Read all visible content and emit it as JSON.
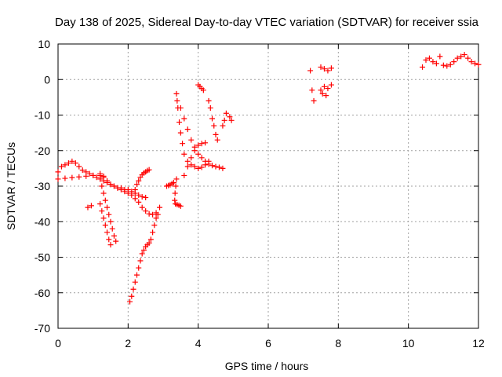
{
  "chart_data": {
    "type": "scatter",
    "title": "Day 138 of 2025, Sidereal Day-to-day VTEC variation (SDTVAR) for receiver ssia",
    "xlabel": "GPS time / hours",
    "ylabel": "SDTVAR / TECUs",
    "xlim": [
      0,
      12
    ],
    "ylim": [
      -70,
      10
    ],
    "xticks": [
      0,
      2,
      4,
      6,
      8,
      10,
      12
    ],
    "yticks": [
      10,
      0,
      -10,
      -20,
      -30,
      -40,
      -50,
      -60,
      -70
    ],
    "grid": true,
    "legend": "none",
    "marker": "+",
    "color": "#ff0000",
    "series": [
      {
        "values": [
          [
            0,
            -26
          ],
          [
            0.1,
            -24.5
          ],
          [
            0.2,
            -24
          ],
          [
            0.3,
            -23.5
          ],
          [
            0.4,
            -23
          ],
          [
            0.5,
            -23.5
          ],
          [
            0.6,
            -24.5
          ],
          [
            0.7,
            -25.5
          ],
          [
            0.8,
            -26
          ],
          [
            0.9,
            -26.5
          ],
          [
            1.0,
            -27
          ],
          [
            1.1,
            -27.5
          ],
          [
            1.2,
            -28
          ],
          [
            1.3,
            -28.5
          ],
          [
            1.4,
            -29
          ],
          [
            1.5,
            -29.5
          ],
          [
            1.6,
            -30
          ],
          [
            1.7,
            -30.5
          ],
          [
            1.8,
            -30.5
          ],
          [
            1.9,
            -31
          ],
          [
            2.0,
            -31
          ],
          [
            2.1,
            -31.5
          ],
          [
            2.2,
            -32
          ],
          [
            2.3,
            -32.5
          ],
          [
            2.4,
            -33
          ],
          [
            2.5,
            -33.2
          ]
        ]
      },
      {
        "values": [
          [
            0,
            -28
          ],
          [
            0.2,
            -27.8
          ],
          [
            0.4,
            -27.6
          ],
          [
            0.6,
            -27.4
          ],
          [
            0.8,
            -27.2
          ],
          [
            1.0,
            -27
          ],
          [
            1.2,
            -27
          ],
          [
            1.3,
            -27.2
          ]
        ]
      },
      {
        "values": [
          [
            1.2,
            -26.5
          ],
          [
            1.3,
            -27.5
          ],
          [
            1.4,
            -28.5
          ],
          [
            1.5,
            -29.5
          ],
          [
            1.6,
            -30
          ],
          [
            1.7,
            -30.5
          ],
          [
            1.8,
            -31
          ],
          [
            1.9,
            -31.5
          ],
          [
            2.0,
            -32
          ],
          [
            2.1,
            -32.5
          ],
          [
            2.2,
            -33.5
          ],
          [
            2.3,
            -34.5
          ],
          [
            2.4,
            -36
          ],
          [
            2.5,
            -37
          ],
          [
            2.6,
            -37.8
          ],
          [
            2.7,
            -38
          ],
          [
            2.8,
            -37.5
          ],
          [
            2.9,
            -36
          ]
        ]
      },
      {
        "values": [
          [
            1.2,
            -28
          ],
          [
            1.25,
            -30
          ],
          [
            1.3,
            -32
          ],
          [
            1.35,
            -34
          ],
          [
            1.4,
            -36
          ],
          [
            1.45,
            -38
          ],
          [
            1.5,
            -40
          ],
          [
            1.55,
            -42
          ],
          [
            1.6,
            -44
          ],
          [
            1.65,
            -45.5
          ]
        ]
      },
      {
        "values": [
          [
            1.2,
            -35
          ],
          [
            1.25,
            -37
          ],
          [
            1.3,
            -39
          ],
          [
            1.35,
            -41
          ],
          [
            1.4,
            -43
          ],
          [
            1.45,
            -45
          ],
          [
            1.5,
            -46.5
          ]
        ]
      },
      {
        "values": [
          [
            0.85,
            -36
          ],
          [
            0.95,
            -35.5
          ]
        ]
      },
      {
        "values": [
          [
            2.05,
            -62.5
          ],
          [
            2.1,
            -61
          ],
          [
            2.15,
            -59
          ],
          [
            2.2,
            -57
          ],
          [
            2.25,
            -55
          ],
          [
            2.3,
            -53
          ],
          [
            2.35,
            -51
          ],
          [
            2.4,
            -49
          ],
          [
            2.45,
            -48
          ],
          [
            2.5,
            -47
          ],
          [
            2.55,
            -46.5
          ],
          [
            2.6,
            -46
          ],
          [
            2.65,
            -45
          ],
          [
            2.7,
            -43
          ],
          [
            2.75,
            -41
          ],
          [
            2.8,
            -39
          ],
          [
            2.85,
            -38
          ]
        ]
      },
      {
        "values": [
          [
            2.2,
            -31
          ],
          [
            2.25,
            -29.5
          ],
          [
            2.3,
            -28.5
          ],
          [
            2.35,
            -27.5
          ],
          [
            2.4,
            -26.8
          ],
          [
            2.45,
            -26.3
          ],
          [
            2.5,
            -26
          ],
          [
            2.55,
            -25.6
          ],
          [
            2.6,
            -25.4
          ]
        ]
      },
      {
        "values": [
          [
            3.1,
            -30
          ],
          [
            3.15,
            -29.8
          ],
          [
            3.2,
            -29.6
          ],
          [
            3.25,
            -29.3
          ],
          [
            3.3,
            -29
          ]
        ]
      },
      {
        "values": [
          [
            3.35,
            -35
          ],
          [
            3.4,
            -35.2
          ],
          [
            3.45,
            -35.4
          ],
          [
            3.5,
            -35.6
          ]
        ]
      },
      {
        "values": [
          [
            3.38,
            -4
          ],
          [
            3.42,
            -8
          ],
          [
            3.46,
            -12
          ],
          [
            3.5,
            -15
          ],
          [
            3.55,
            -18
          ],
          [
            3.6,
            -21
          ],
          [
            3.7,
            -23
          ],
          [
            3.8,
            -24
          ],
          [
            3.9,
            -24.5
          ],
          [
            4.0,
            -25
          ],
          [
            4.1,
            -24.7
          ],
          [
            4.2,
            -24
          ],
          [
            4.3,
            -23
          ]
        ]
      },
      {
        "values": [
          [
            3.38,
            -28
          ],
          [
            3.36,
            -30
          ],
          [
            3.34,
            -32
          ],
          [
            3.33,
            -34
          ]
        ]
      },
      {
        "values": [
          [
            3.4,
            -6
          ],
          [
            3.5,
            -8
          ],
          [
            3.6,
            -11
          ],
          [
            3.7,
            -14
          ],
          [
            3.8,
            -17
          ],
          [
            3.9,
            -19
          ],
          [
            4.0,
            -21
          ],
          [
            4.1,
            -22
          ],
          [
            4.2,
            -23
          ],
          [
            4.3,
            -23.8
          ],
          [
            4.4,
            -24.2
          ],
          [
            4.5,
            -24.5
          ],
          [
            4.6,
            -24.7
          ],
          [
            4.7,
            -25
          ]
        ]
      },
      {
        "values": [
          [
            3.6,
            -27
          ],
          [
            3.7,
            -24.5
          ],
          [
            3.8,
            -22
          ],
          [
            3.9,
            -20
          ],
          [
            4.0,
            -18.5
          ],
          [
            4.1,
            -18
          ],
          [
            4.2,
            -17.8
          ]
        ]
      },
      {
        "values": [
          [
            4.0,
            -1.5
          ],
          [
            4.05,
            -2
          ],
          [
            4.1,
            -2.5
          ],
          [
            4.15,
            -3
          ]
        ]
      },
      {
        "values": [
          [
            4.3,
            -6
          ],
          [
            4.35,
            -8
          ],
          [
            4.4,
            -11
          ],
          [
            4.45,
            -13
          ],
          [
            4.5,
            -15.5
          ],
          [
            4.55,
            -17
          ]
        ]
      },
      {
        "values": [
          [
            4.7,
            -13
          ],
          [
            4.75,
            -11.5
          ],
          [
            4.8,
            -9.5
          ],
          [
            4.9,
            -10.5
          ],
          [
            4.95,
            -11.5
          ]
        ]
      },
      {
        "values": [
          [
            7.2,
            2.5
          ],
          [
            7.25,
            -3
          ],
          [
            7.3,
            -6
          ],
          [
            7.5,
            3.5
          ],
          [
            7.6,
            3
          ],
          [
            7.7,
            2.5
          ],
          [
            7.8,
            3.2
          ],
          [
            7.5,
            -3
          ],
          [
            7.6,
            -2
          ],
          [
            7.7,
            -2.5
          ],
          [
            7.8,
            -1.5
          ],
          [
            7.55,
            -4
          ],
          [
            7.65,
            -4.5
          ]
        ]
      },
      {
        "values": [
          [
            10.4,
            3.5
          ],
          [
            10.5,
            5.5
          ],
          [
            10.6,
            6
          ],
          [
            10.7,
            5
          ],
          [
            10.8,
            4.5
          ],
          [
            10.9,
            6.5
          ],
          [
            11.0,
            4
          ],
          [
            11.1,
            3.8
          ],
          [
            11.2,
            4.2
          ],
          [
            11.3,
            5
          ],
          [
            11.4,
            6
          ],
          [
            11.5,
            6.5
          ],
          [
            11.6,
            7
          ],
          [
            11.7,
            6
          ],
          [
            11.8,
            5
          ],
          [
            11.9,
            4.5
          ],
          [
            12.0,
            4.2
          ]
        ]
      }
    ]
  }
}
